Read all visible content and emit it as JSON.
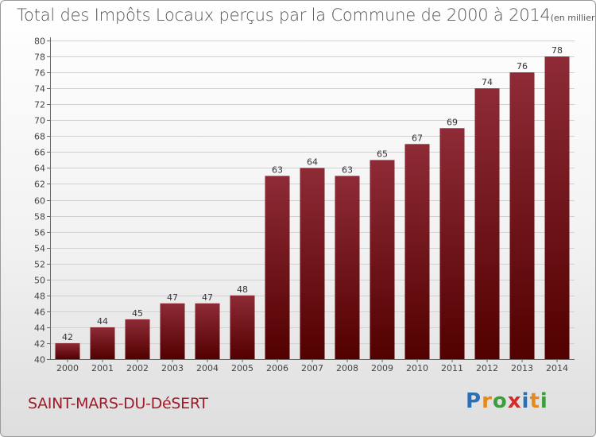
{
  "header": {
    "title": "Total des Impôts Locaux perçus par la Commune de 2000 à 2014",
    "unit": "(en milliers d'€)"
  },
  "commune": "SAINT-MARS-DU-DéSERT",
  "logo": {
    "letters": [
      "P",
      "r",
      "o",
      "x",
      "i",
      "t",
      "i"
    ],
    "colors": [
      "#2b6fb5",
      "#e58a1c",
      "#3b9e3a",
      "#d42a2a",
      "#2b6fb5",
      "#e58a1c",
      "#3b9e3a"
    ]
  },
  "chart_data": {
    "type": "bar",
    "title": "Total des Impôts Locaux perçus par la Commune de 2000 à 2014",
    "xlabel": "",
    "ylabel": "",
    "categories": [
      "2000",
      "2001",
      "2002",
      "2003",
      "2004",
      "2005",
      "2006",
      "2007",
      "2008",
      "2009",
      "2010",
      "2011",
      "2012",
      "2013",
      "2014"
    ],
    "values": [
      42,
      44,
      45,
      47,
      47,
      48,
      63,
      64,
      63,
      65,
      67,
      69,
      74,
      76,
      78
    ],
    "ylim": [
      40,
      80
    ],
    "yticks": [
      40,
      42,
      44,
      46,
      48,
      50,
      52,
      54,
      56,
      58,
      60,
      62,
      64,
      66,
      68,
      70,
      72,
      74,
      76,
      78,
      80
    ],
    "grid": true,
    "bar_color_top": "#8e2b36",
    "bar_color_bottom": "#520000"
  }
}
